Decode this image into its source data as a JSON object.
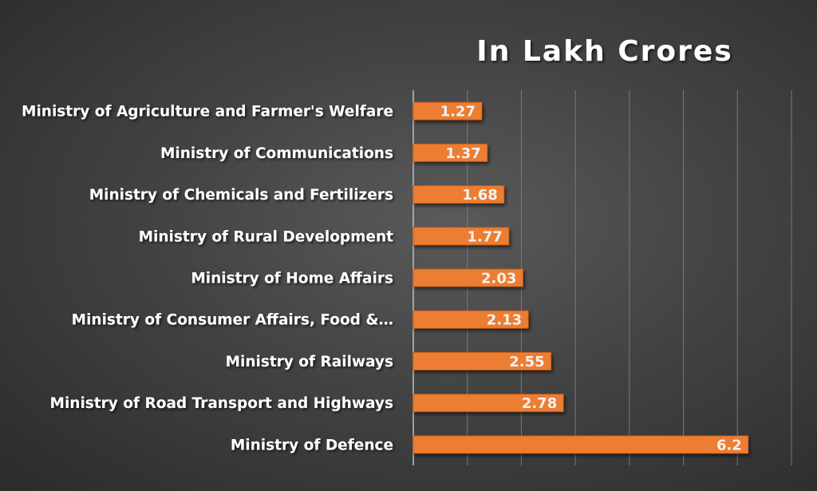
{
  "chart_data": {
    "type": "bar",
    "orientation": "horizontal",
    "title": "In Lakh Crores",
    "categories": [
      "Ministry of Agriculture and Farmer's Welfare",
      "Ministry of Communications",
      "Ministry of Chemicals and Fertilizers",
      "Ministry of Rural Development",
      "Ministry of Home Affairs",
      "Ministry of Consumer Affairs, Food &…",
      "Ministry of Railways",
      "Ministry of Road Transport and Highways",
      "Ministry of Defence"
    ],
    "values": [
      1.27,
      1.37,
      1.68,
      1.77,
      2.03,
      2.13,
      2.55,
      2.78,
      6.2
    ],
    "value_labels": [
      "1.27",
      "1.37",
      "1.68",
      "1.77",
      "2.03",
      "2.13",
      "2.55",
      "2.78",
      "6.2"
    ],
    "xlim": [
      0,
      7
    ],
    "grid": true,
    "colors": {
      "bar": "#ED7D31",
      "bar_edge": "#C55A11",
      "text": "#FFFFFF",
      "value_text": "#F2F2F2",
      "grid": "#7a7a7a",
      "axis": "#bfbfbf"
    }
  }
}
